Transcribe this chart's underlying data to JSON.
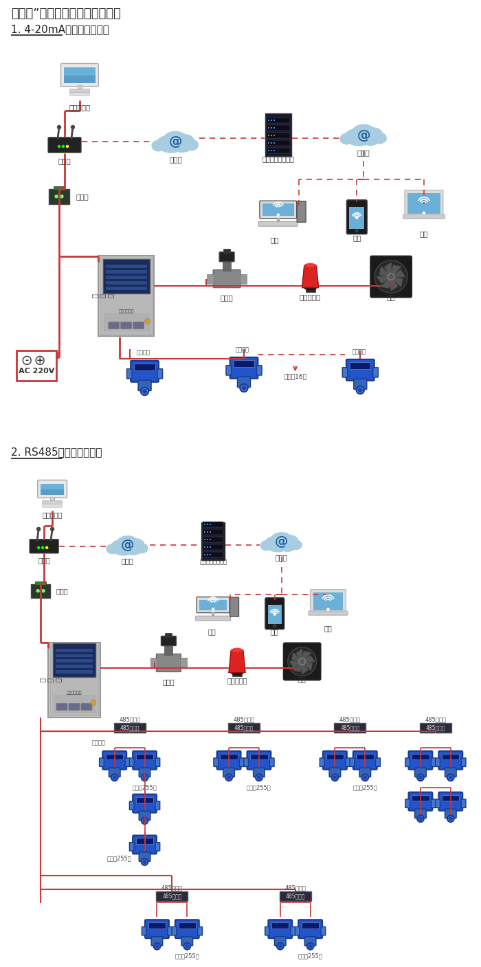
{
  "title": "机气猫”系列带显示固定式检测仪",
  "section1_title": "1. 4-20mA信号连接系统图",
  "section2_title": "2. RS485信号连接系统图",
  "figsize": [
    7.0,
    14.07
  ],
  "dpi": 100,
  "s1": {
    "pc_label": "单机版电脑",
    "router_label": "路由器",
    "cloud1_label": "互联网",
    "server_label": "安哈尔网络服务器",
    "cloud2_label": "互联网",
    "converter_label": "转换器",
    "desktop_label": "电脑",
    "phone_label": "手机",
    "terminal_label": "终端",
    "tongxun_label": "通\n讯\n线",
    "valve_label": "电磁阀",
    "alarm_label": "声光报警器",
    "fan_label": "风机",
    "connect_note": "可连接16个",
    "signal_out1": "信号输出",
    "signal_out2": "信号输出",
    "signal_out3": "信号输出"
  },
  "s2": {
    "pc_label": "单机版电脑",
    "router_label": "路由器",
    "cloud1_label": "互联网",
    "server_label": "安哈尔网络服务器",
    "cloud2_label": "互联网",
    "converter_label": "转换器",
    "desktop_label": "电脑",
    "phone_label": "手机",
    "terminal_label": "终端",
    "tongxun_label": "通\n讯\n线",
    "valve_label": "电磁阀",
    "alarm_label": "声光报警器",
    "fan_label": "风机",
    "hub_label": "485中继器",
    "signal_label": "信号输出",
    "connect255": "可连接255台",
    "connect255b": "可连接255台 ↓"
  },
  "RED": "#c8373a",
  "DASHED_RED": "#c8373a",
  "GRAY": "#888888"
}
